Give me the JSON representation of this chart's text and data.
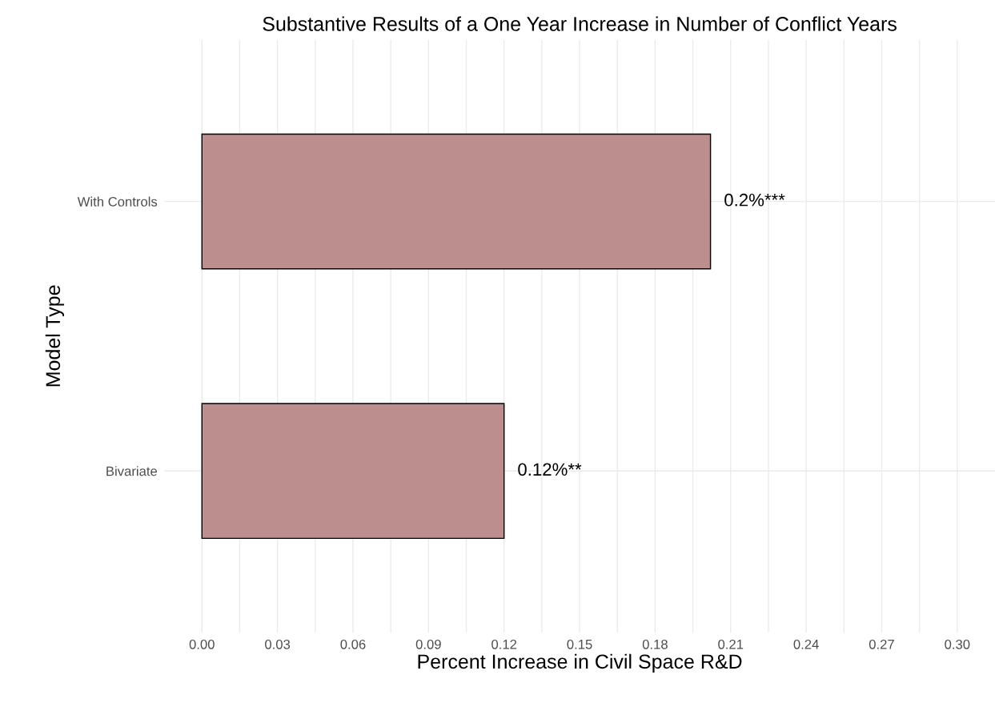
{
  "chart_data": {
    "type": "bar",
    "orientation": "horizontal",
    "title": "Substantive Results of a One Year Increase in Number of Conflict Years",
    "xlabel": "Percent Increase in Civil Space R&D",
    "ylabel": "Model Type",
    "categories": [
      "With Controls",
      "Bivariate"
    ],
    "values": [
      0.202,
      0.12
    ],
    "value_labels": [
      "0.2%***",
      "0.12%**"
    ],
    "color": "#bc8e8e",
    "xlim": [
      -0.015,
      0.315
    ],
    "xticks": [
      {
        "value": 0,
        "label": "0.00"
      },
      {
        "value": 0.015,
        "label": null
      },
      {
        "value": 0.03,
        "label": "0.03"
      },
      {
        "value": 0.045,
        "label": null
      },
      {
        "value": 0.06,
        "label": "0.06"
      },
      {
        "value": 0.075,
        "label": null
      },
      {
        "value": 0.09,
        "label": "0.09"
      },
      {
        "value": 0.105,
        "label": null
      },
      {
        "value": 0.12,
        "label": "0.12"
      },
      {
        "value": 0.135,
        "label": null
      },
      {
        "value": 0.15,
        "label": "0.15"
      },
      {
        "value": 0.165,
        "label": null
      },
      {
        "value": 0.18,
        "label": "0.18"
      },
      {
        "value": 0.195,
        "label": null
      },
      {
        "value": 0.21,
        "label": "0.21"
      },
      {
        "value": 0.225,
        "label": null
      },
      {
        "value": 0.24,
        "label": "0.24"
      },
      {
        "value": 0.255,
        "label": null
      },
      {
        "value": 0.27,
        "label": "0.27"
      },
      {
        "value": 0.285,
        "label": null
      },
      {
        "value": 0.3,
        "label": "0.30"
      }
    ],
    "grid": true
  }
}
